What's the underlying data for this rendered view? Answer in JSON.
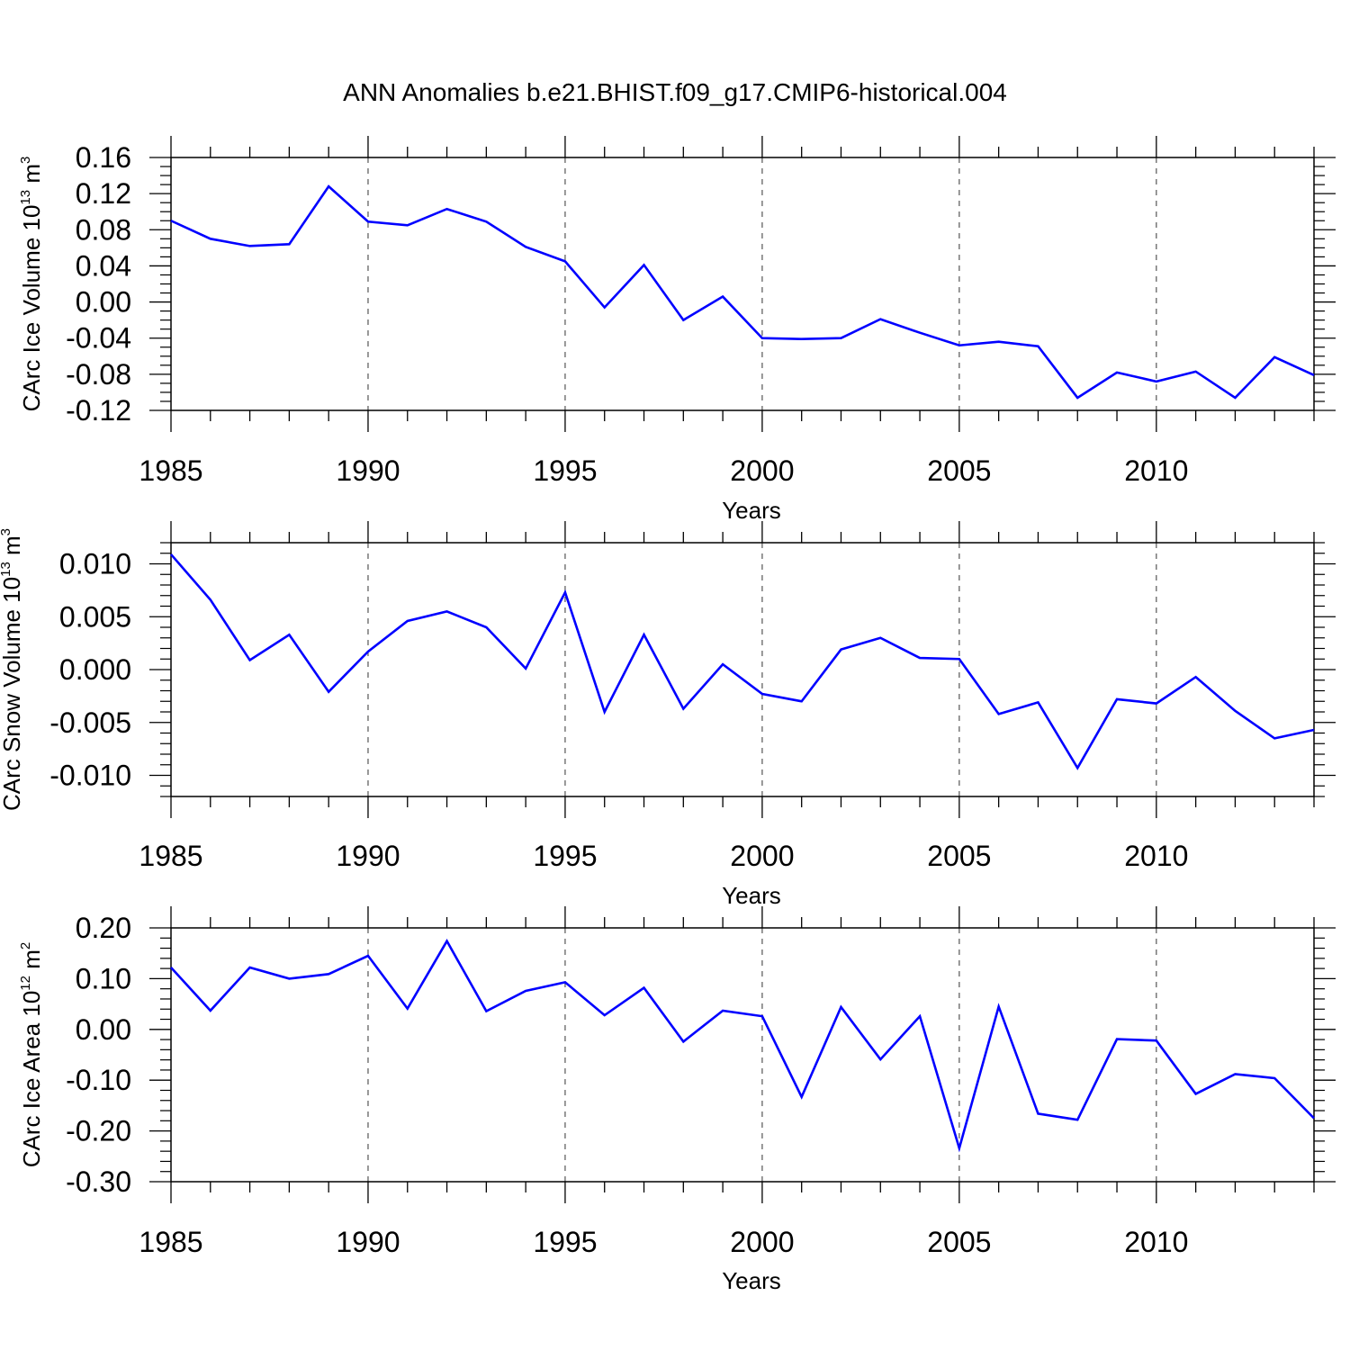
{
  "title": "ANN Anomalies b.e21.BHIST.f09_g17.CMIP6-historical.004",
  "colors": {
    "series": "#0000ff",
    "axes": "#000000",
    "grid": "#555555"
  },
  "chart_data": [
    {
      "type": "line",
      "id": "ice-volume",
      "ylabel": {
        "main": "CArc Ice Volume 10",
        "sup": "13",
        "mid": " m",
        "sup2": "3"
      },
      "xlabel": "Years",
      "xlim": [
        1985,
        2014
      ],
      "ylim": [
        -0.12,
        0.16
      ],
      "yticks": [
        -0.12,
        -0.08,
        -0.04,
        0.0,
        0.04,
        0.08,
        0.12,
        0.16
      ],
      "ytick_labels": [
        "-0.12",
        "-0.08",
        "-0.04",
        "0.00",
        "0.04",
        "0.08",
        "0.12",
        "0.16"
      ],
      "yminor_step": 0.01,
      "xticks": [
        1985,
        1990,
        1995,
        2000,
        2005,
        2010
      ],
      "xtick_labels": [
        "1985",
        "1990",
        "1995",
        "2000",
        "2005",
        "2010"
      ],
      "grid": "vertical-dashed",
      "x": [
        1985,
        1986,
        1987,
        1988,
        1989,
        1990,
        1991,
        1992,
        1993,
        1994,
        1995,
        1996,
        1997,
        1998,
        1999,
        2000,
        2001,
        2002,
        2003,
        2004,
        2005,
        2006,
        2007,
        2008,
        2009,
        2010,
        2011,
        2012,
        2013,
        2014
      ],
      "y": [
        0.09,
        0.07,
        0.062,
        0.064,
        0.128,
        0.089,
        0.085,
        0.103,
        0.089,
        0.061,
        0.045,
        -0.006,
        0.041,
        -0.02,
        0.006,
        -0.04,
        -0.041,
        -0.04,
        -0.019,
        -0.034,
        -0.048,
        -0.044,
        -0.049,
        -0.106,
        -0.078,
        -0.088,
        -0.077,
        -0.106,
        -0.061,
        -0.081
      ]
    },
    {
      "type": "line",
      "id": "snow-volume",
      "ylabel": {
        "main": "CArc Snow Volume 10",
        "sup": "13",
        "mid": " m",
        "sup2": "3"
      },
      "xlabel": "Years",
      "xlim": [
        1985,
        2014
      ],
      "ylim": [
        -0.012,
        0.012
      ],
      "yticks": [
        -0.01,
        -0.005,
        0.0,
        0.005,
        0.01
      ],
      "ytick_labels": [
        "-0.010",
        "-0.005",
        "0.000",
        "0.005",
        "0.010"
      ],
      "yminor_step": 0.001,
      "xticks": [
        1985,
        1990,
        1995,
        2000,
        2005,
        2010
      ],
      "xtick_labels": [
        "1985",
        "1990",
        "1995",
        "2000",
        "2005",
        "2010"
      ],
      "grid": "vertical-dashed",
      "x": [
        1985,
        1986,
        1987,
        1988,
        1989,
        1990,
        1991,
        1992,
        1993,
        1994,
        1995,
        1996,
        1997,
        1998,
        1999,
        2000,
        2001,
        2002,
        2003,
        2004,
        2005,
        2006,
        2007,
        2008,
        2009,
        2010,
        2011,
        2012,
        2013,
        2014
      ],
      "y": [
        0.0109,
        0.0066,
        0.0009,
        0.0033,
        -0.0021,
        0.0017,
        0.0046,
        0.0055,
        0.004,
        0.0001,
        0.0073,
        -0.004,
        0.0033,
        -0.0037,
        0.0005,
        -0.0023,
        -0.003,
        0.0019,
        0.003,
        0.0011,
        0.001,
        -0.0042,
        -0.0031,
        -0.0093,
        -0.0028,
        -0.0032,
        -0.0007,
        -0.0039,
        -0.0065,
        -0.0057
      ]
    },
    {
      "type": "line",
      "id": "ice-area",
      "ylabel": {
        "main": "CArc Ice Area 10",
        "sup": "12",
        "mid": " m",
        "sup2": "2"
      },
      "xlabel": "Years",
      "xlim": [
        1985,
        2014
      ],
      "ylim": [
        -0.3,
        0.2
      ],
      "yticks": [
        -0.3,
        -0.2,
        -0.1,
        0.0,
        0.1,
        0.2
      ],
      "ytick_labels": [
        "-0.30",
        "-0.20",
        "-0.10",
        "0.00",
        "0.10",
        "0.20"
      ],
      "yminor_step": 0.02,
      "xticks": [
        1985,
        1990,
        1995,
        2000,
        2005,
        2010
      ],
      "xtick_labels": [
        "1985",
        "1990",
        "1995",
        "2000",
        "2005",
        "2010"
      ],
      "grid": "vertical-dashed",
      "x": [
        1985,
        1986,
        1987,
        1988,
        1989,
        1990,
        1991,
        1992,
        1993,
        1994,
        1995,
        1996,
        1997,
        1998,
        1999,
        2000,
        2001,
        2002,
        2003,
        2004,
        2005,
        2006,
        2007,
        2008,
        2009,
        2010,
        2011,
        2012,
        2013,
        2014
      ],
      "y": [
        0.122,
        0.037,
        0.122,
        0.1,
        0.109,
        0.145,
        0.041,
        0.174,
        0.036,
        0.076,
        0.093,
        0.028,
        0.082,
        -0.024,
        0.037,
        0.026,
        -0.133,
        0.044,
        -0.059,
        0.026,
        -0.234,
        0.045,
        -0.166,
        -0.178,
        -0.019,
        -0.022,
        -0.127,
        -0.088,
        -0.096,
        -0.175
      ]
    }
  ]
}
